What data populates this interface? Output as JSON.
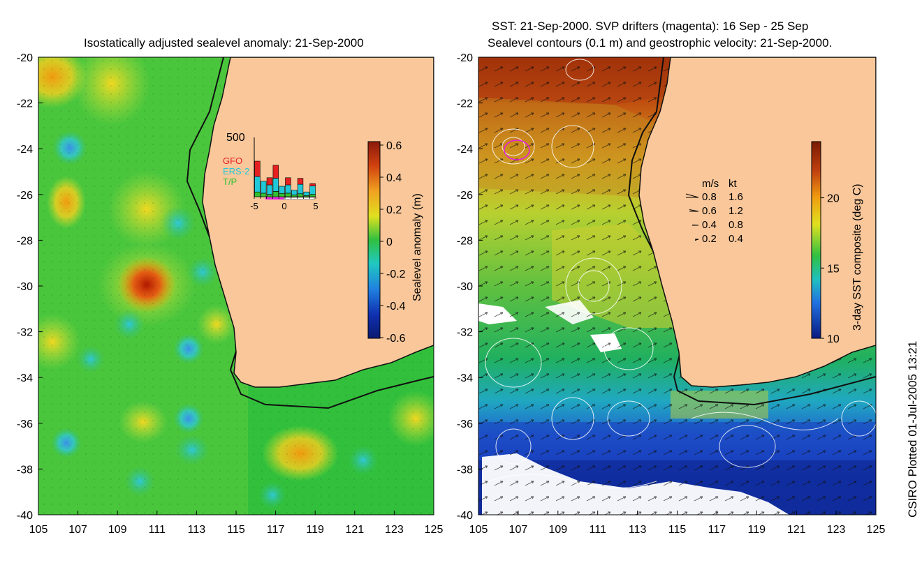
{
  "chart_data": [
    {
      "type": "heatmap",
      "title": "Isostatically adjusted sealevel anomaly: 21-Sep-2000",
      "x_ticks": [
        "105",
        "107",
        "109",
        "111",
        "113",
        "115",
        "117",
        "119",
        "121",
        "123",
        "125"
      ],
      "y_ticks": [
        "-20",
        "-22",
        "-24",
        "-26",
        "-28",
        "-30",
        "-32",
        "-34",
        "-36",
        "-38",
        "-40"
      ],
      "xlim": [
        105,
        125
      ],
      "ylim": [
        -40,
        -20
      ],
      "colorbar": {
        "label": "Sealevel anomaly (m)",
        "range": [
          -0.6,
          0.6
        ],
        "ticks": [
          "0.6",
          "0.4",
          "0.2",
          "0",
          "-0.2",
          "-0.4",
          "-0.6"
        ]
      },
      "inset": {
        "type": "bar",
        "ymax_label": "500",
        "x_ticks": [
          "-5",
          "0",
          "5"
        ],
        "legend": [
          "GFO",
          "ERS-2",
          "T/P"
        ],
        "legend_colors": [
          "#e62020",
          "#20c8d8",
          "#30c030"
        ],
        "series": [
          {
            "name": "T/P",
            "values": [
              40,
              30,
              20,
              45,
              28,
              30,
              15,
              25,
              10,
              20
            ]
          },
          {
            "name": "ERS-2",
            "values": [
              130,
              100,
              80,
              110,
              60,
              70,
              40,
              80,
              30,
              70
            ]
          },
          {
            "name": "GFO",
            "values": [
              130,
              0,
              60,
              110,
              0,
              60,
              0,
              50,
              0,
              20
            ]
          }
        ]
      }
    },
    {
      "type": "heatmap",
      "title_line1": "SST: 21-Sep-2000. SVP drifters (magenta): 16 Sep - 25 Sep",
      "title_line2": "Sealevel contours (0.1 m) and geostrophic velocity: 21-Sep-2000.",
      "x_ticks": [
        "105",
        "107",
        "109",
        "111",
        "113",
        "115",
        "117",
        "119",
        "121",
        "123",
        "125"
      ],
      "y_ticks": [
        "-20",
        "-22",
        "-24",
        "-26",
        "-28",
        "-30",
        "-32",
        "-34",
        "-36",
        "-38",
        "-40"
      ],
      "xlim": [
        105,
        125
      ],
      "ylim": [
        -40,
        -20
      ],
      "colorbar": {
        "label": "3-day SST composite (deg C)",
        "range": [
          10,
          24
        ],
        "ticks": [
          "20",
          "15",
          "10"
        ]
      },
      "velocity_legend": {
        "header": [
          "m/s",
          "kt"
        ],
        "rows": [
          [
            "0.8",
            "1.6"
          ],
          [
            "0.6",
            "1.2"
          ],
          [
            "0.4",
            "0.8"
          ],
          [
            "0.2",
            "0.4"
          ]
        ]
      }
    }
  ],
  "footer": {
    "signature": "CSIRO Plotted 01-Jul-2005 13:21"
  }
}
